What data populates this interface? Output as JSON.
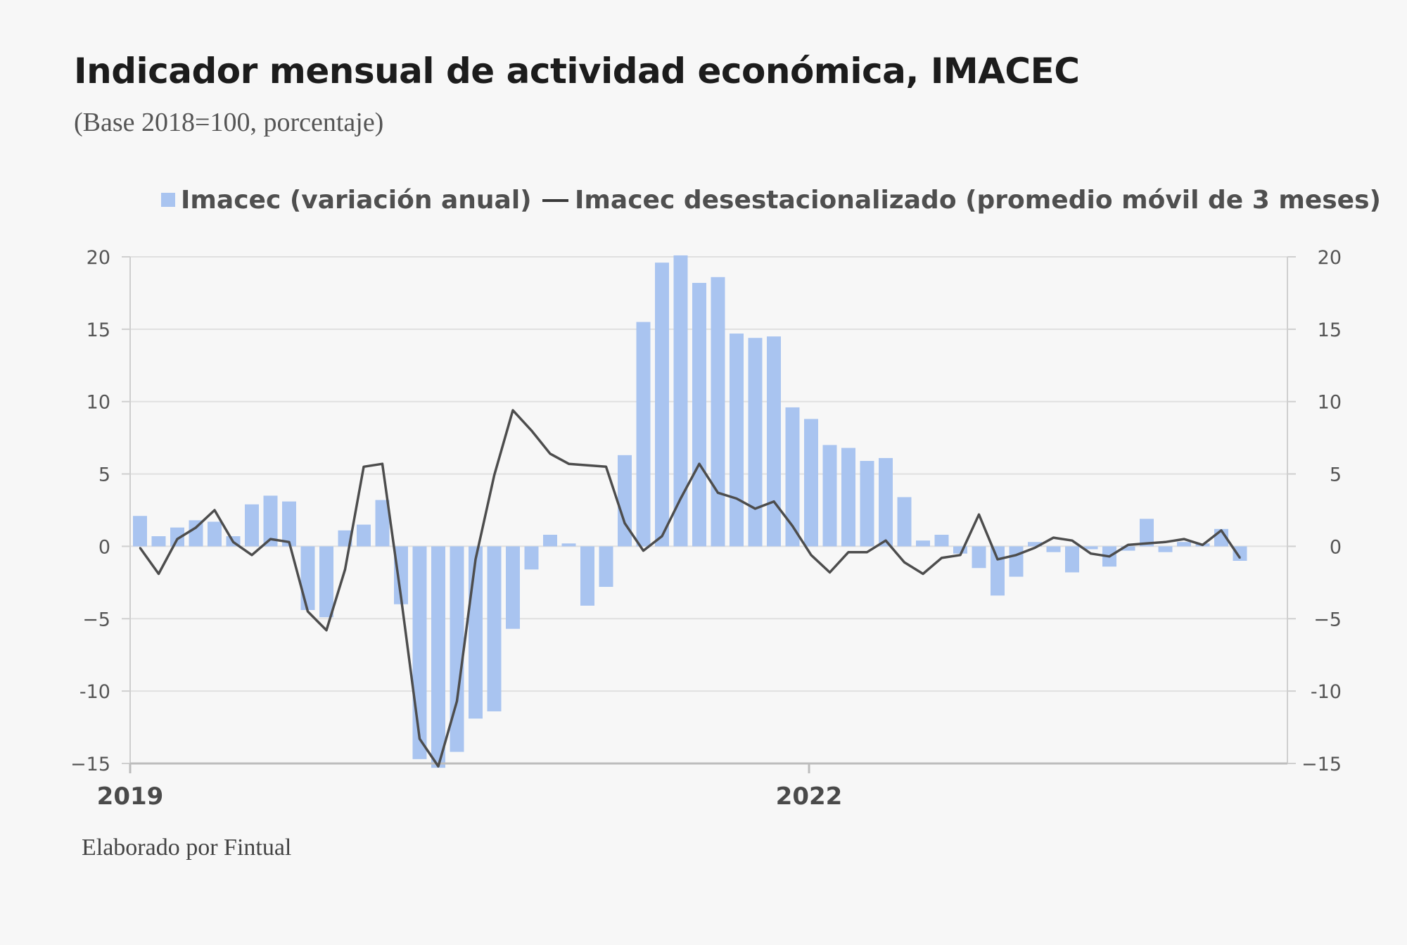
{
  "title": "Indicador mensual de actividad económica, IMACEC",
  "subtitle": "(Base 2018=100, porcentaje)",
  "source": "Elaborado por Fintual",
  "colors": {
    "bar": "#a9c4f0",
    "line": "#4d4d4d",
    "grid": "#e0e0e0",
    "axis": "#cfcfcf"
  },
  "chart_data": {
    "type": "bar",
    "title": "Indicador mensual de actividad económica, IMACEC",
    "xlabel": "",
    "ylabel": "",
    "ylim": [
      -15,
      20
    ],
    "yticks": [
      20,
      15,
      10,
      5,
      0,
      -5,
      -10,
      -15
    ],
    "ytick_labels": [
      "20",
      "15",
      "10",
      "5",
      "0",
      "−5",
      "-10",
      "−15"
    ],
    "x_tick_labels": [
      {
        "label": "2019",
        "index": 0
      },
      {
        "label": "2022",
        "index": 36
      }
    ],
    "legend": {
      "position": "top",
      "bar_label": "Imacec (variación anual)",
      "line_label": "Imacec desestacionalizado (promedio móvil de 3 meses)"
    },
    "categories": [
      "2019-01",
      "2019-02",
      "2019-03",
      "2019-04",
      "2019-05",
      "2019-06",
      "2019-07",
      "2019-08",
      "2019-09",
      "2019-10",
      "2019-11",
      "2019-12",
      "2020-01",
      "2020-02",
      "2020-03",
      "2020-04",
      "2020-05",
      "2020-06",
      "2020-07",
      "2020-08",
      "2020-09",
      "2020-10",
      "2020-11",
      "2020-12",
      "2021-01",
      "2021-02",
      "2021-03",
      "2021-04",
      "2021-05",
      "2021-06",
      "2021-07",
      "2021-08",
      "2021-09",
      "2021-10",
      "2021-11",
      "2021-12",
      "2022-01",
      "2022-02",
      "2022-03",
      "2022-04",
      "2022-05",
      "2022-06",
      "2022-07",
      "2022-08",
      "2022-09",
      "2022-10",
      "2022-11",
      "2022-12",
      "2023-01",
      "2023-02",
      "2023-03",
      "2023-04",
      "2023-05",
      "2023-06",
      "2023-07",
      "2023-08",
      "2023-09",
      "2023-10",
      "2023-11",
      "2023-12"
    ],
    "series": [
      {
        "name": "Imacec (variación anual)",
        "type": "bar",
        "values": [
          2.1,
          0.7,
          1.3,
          1.8,
          1.7,
          0.7,
          2.9,
          3.5,
          3.1,
          -4.4,
          -4.9,
          1.1,
          1.5,
          3.2,
          -4.0,
          -14.7,
          -15.3,
          -14.2,
          -11.9,
          -11.4,
          -5.7,
          -1.6,
          0.8,
          0.2,
          -4.1,
          -2.8,
          6.3,
          15.5,
          19.6,
          20.1,
          18.2,
          18.6,
          14.7,
          14.4,
          14.5,
          9.6,
          8.8,
          7.0,
          6.8,
          5.9,
          6.1,
          3.4,
          0.4,
          0.8,
          -0.5,
          -1.5,
          -3.4,
          -2.1,
          0.3,
          -0.4,
          -1.8,
          -0.2,
          -1.4,
          -0.3,
          1.9,
          -0.4,
          0.3,
          0.2,
          1.2,
          -1.0
        ]
      },
      {
        "name": "Imacec desestacionalizado (promedio móvil de 3 meses)",
        "type": "line",
        "values": [
          -0.1,
          -1.9,
          0.5,
          1.3,
          2.5,
          0.3,
          -0.6,
          0.5,
          0.3,
          -4.5,
          -5.8,
          -1.6,
          5.5,
          5.7,
          -3.5,
          -13.3,
          -15.2,
          -10.7,
          -0.9,
          4.9,
          9.4,
          8.0,
          6.4,
          5.7,
          5.6,
          5.5,
          1.6,
          -0.3,
          0.7,
          3.3,
          5.7,
          3.7,
          3.3,
          2.6,
          3.1,
          1.4,
          -0.6,
          -1.8,
          -0.4,
          -0.4,
          0.4,
          -1.1,
          -1.9,
          -0.8,
          -0.6,
          2.2,
          -0.9,
          -0.6,
          -0.1,
          0.6,
          0.4,
          -0.5,
          -0.7,
          0.1,
          0.2,
          0.3,
          0.5,
          0.1,
          1.1,
          -0.8
        ]
      }
    ]
  }
}
